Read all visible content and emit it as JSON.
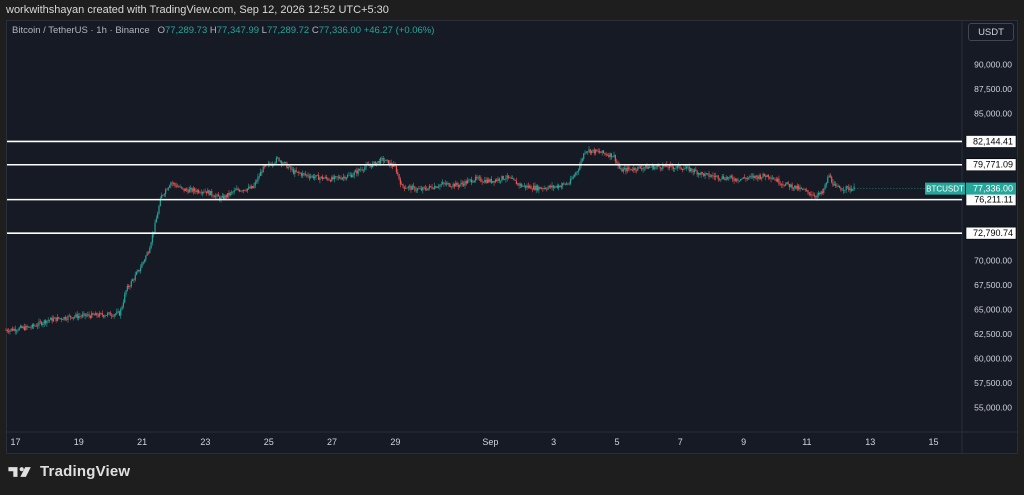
{
  "header": {
    "credit": "workwithshayan created with TradingView.com, Sep 12, 2026 12:52 UTC+5:30"
  },
  "legend": {
    "symbol": "Bitcoin / TetherUS · 1h · Binance",
    "open_label": "O",
    "open": "77,289.73",
    "high_label": "H",
    "high": "77,347.99",
    "low_label": "L",
    "low": "77,289.72",
    "close_label": "C",
    "close": "77,336.00",
    "change": "+46.27 (+0.06%)"
  },
  "currency_button": "USDT",
  "brand": {
    "name": "TradingView",
    "logo": "tradingview-logo"
  },
  "colors": {
    "up": "#26a69a",
    "down": "#ef5350",
    "level_line": "#ffffff",
    "panel_bg": "#161a25",
    "ticker_label_bg": "#26a69a"
  },
  "chart_data": {
    "type": "candlestick",
    "symbol": "BTCUSDT",
    "interval": "1h",
    "last_price": 77336.0,
    "last_price_text": "77,336.00",
    "symbol_tag": "BTCUSDT",
    "ylim": [
      52500,
      92500
    ],
    "y_ticks": [
      "90,000.00",
      "87,500.00",
      "85,000.00",
      "70,000.00",
      "67,500.00",
      "65,000.00",
      "62,500.00",
      "60,000.00",
      "57,500.00",
      "55,000.00"
    ],
    "y_tick_values": [
      90000,
      87500,
      85000,
      70000,
      67500,
      65000,
      62500,
      60000,
      57500,
      55000
    ],
    "x_ticks": [
      "17",
      "19",
      "21",
      "23",
      "25",
      "27",
      "29",
      "Sep",
      "3",
      "5",
      "7",
      "9",
      "11",
      "13",
      "15"
    ],
    "x_tick_days": [
      17,
      19,
      21,
      23,
      25,
      27,
      29,
      32,
      34,
      36,
      38,
      40,
      42,
      44,
      46
    ],
    "x_range_days": [
      16.7,
      46.9
    ],
    "levels": [
      {
        "value": 82144.41,
        "label": "82,144.41"
      },
      {
        "value": 79771.09,
        "label": "79,771.09"
      },
      {
        "value": 76211.11,
        "label": "76,211.11"
      },
      {
        "value": 72790.74,
        "label": "72,790.74"
      }
    ],
    "price_path": [
      [
        16.7,
        62900
      ],
      [
        17.5,
        63200
      ],
      [
        18.0,
        63900
      ],
      [
        18.8,
        64300
      ],
      [
        19.5,
        64400
      ],
      [
        20.3,
        64600
      ],
      [
        20.5,
        67000
      ],
      [
        20.9,
        69000
      ],
      [
        21.2,
        71000
      ],
      [
        21.4,
        73500
      ],
      [
        21.6,
        76500
      ],
      [
        21.9,
        78000
      ],
      [
        22.3,
        77200
      ],
      [
        23.0,
        77100
      ],
      [
        23.5,
        76300
      ],
      [
        24.0,
        77200
      ],
      [
        24.5,
        77400
      ],
      [
        24.8,
        79300
      ],
      [
        25.3,
        80400
      ],
      [
        25.8,
        79000
      ],
      [
        26.5,
        78500
      ],
      [
        27.0,
        78300
      ],
      [
        27.6,
        78700
      ],
      [
        28.0,
        79500
      ],
      [
        28.3,
        79800
      ],
      [
        28.6,
        80300
      ],
      [
        29.0,
        79500
      ],
      [
        29.2,
        77600
      ],
      [
        29.8,
        77200
      ],
      [
        30.5,
        77800
      ],
      [
        31.0,
        77700
      ],
      [
        31.5,
        78300
      ],
      [
        32.0,
        78100
      ],
      [
        32.5,
        78500
      ],
      [
        33.0,
        77600
      ],
      [
        33.5,
        77400
      ],
      [
        34.0,
        77500
      ],
      [
        34.5,
        77900
      ],
      [
        34.8,
        79500
      ],
      [
        35.0,
        81300
      ],
      [
        35.5,
        81000
      ],
      [
        35.9,
        80700
      ],
      [
        36.1,
        79200
      ],
      [
        36.8,
        79500
      ],
      [
        37.5,
        79600
      ],
      [
        38.0,
        79500
      ],
      [
        38.3,
        79300
      ],
      [
        38.8,
        78700
      ],
      [
        39.3,
        78500
      ],
      [
        39.8,
        78300
      ],
      [
        40.3,
        78500
      ],
      [
        40.8,
        78700
      ],
      [
        41.2,
        77900
      ],
      [
        41.6,
        77500
      ],
      [
        42.0,
        77000
      ],
      [
        42.3,
        76600
      ],
      [
        42.5,
        76900
      ],
      [
        42.7,
        78700
      ],
      [
        42.9,
        77400
      ],
      [
        43.5,
        77336
      ]
    ]
  }
}
